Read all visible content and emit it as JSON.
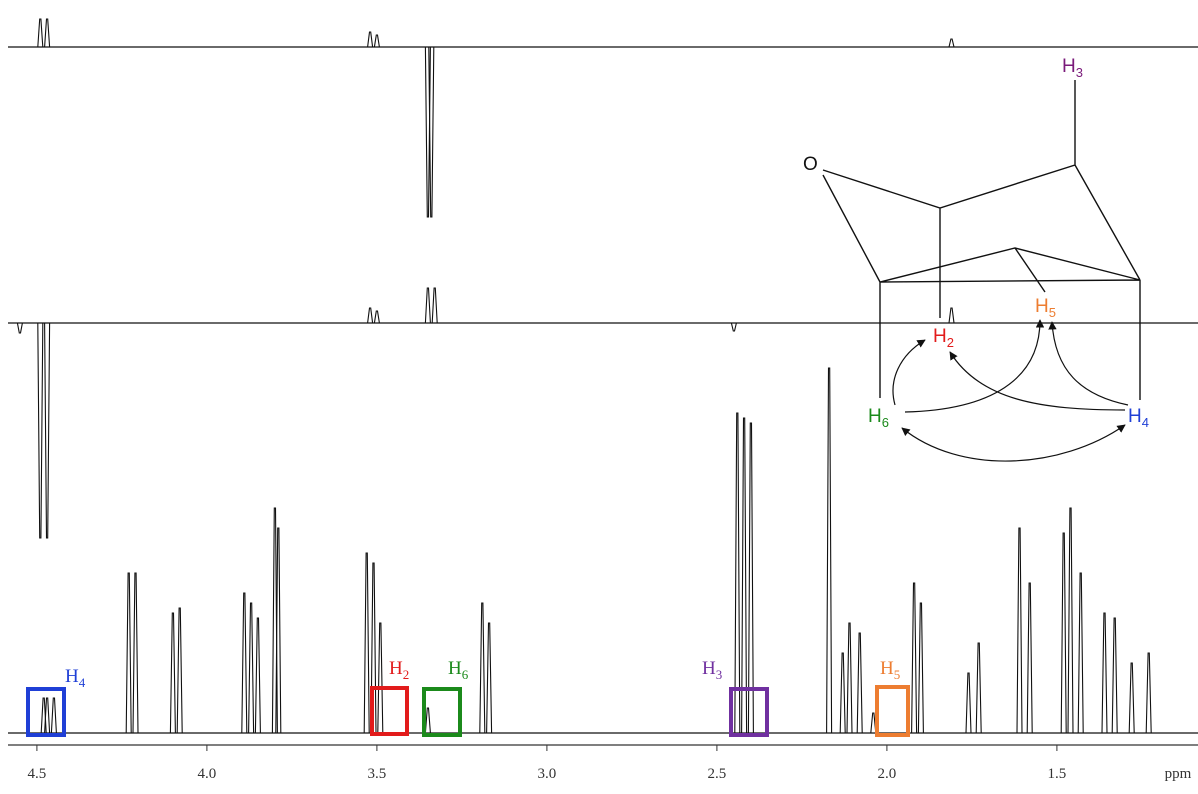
{
  "chart_data": {
    "type": "spectrum",
    "x_label": "ppm",
    "xlim": [
      4.585,
      1.085
    ],
    "xticks": [
      4.5,
      {
        "value": 4.0,
        "label": "4.0"
      },
      3.5,
      {
        "value": 3.0,
        "label": "3.0"
      },
      2.5,
      {
        "value": 2.0,
        "label": "2.0"
      },
      1.5
    ],
    "series": [
      {
        "color": "#111111",
        "x": [
          4.49,
          4.47,
          3.52,
          3.5,
          3.35,
          3.34,
          1.81
        ],
        "values": [
          28,
          28,
          15,
          12,
          -170,
          -170,
          8
        ]
      },
      {
        "color": "#111111",
        "x": [
          4.55,
          4.49,
          4.47,
          3.52,
          3.5,
          3.35,
          3.33,
          2.45,
          1.81
        ],
        "values": [
          -10,
          -215,
          -215,
          15,
          12,
          35,
          35,
          -8,
          15
        ]
      },
      {
        "color": "#111111",
        "x": [
          4.48,
          4.47,
          4.45,
          4.23,
          4.21,
          4.1,
          4.08,
          3.89,
          3.87,
          3.85,
          3.8,
          3.79,
          3.53,
          3.51,
          3.49,
          3.35,
          3.19,
          3.17,
          2.44,
          2.42,
          2.4,
          2.17,
          2.13,
          2.11,
          2.08,
          2.04,
          1.92,
          1.9,
          1.76,
          1.73,
          1.61,
          1.58,
          1.48,
          1.46,
          1.43,
          1.36,
          1.33,
          1.28,
          1.23
        ],
        "values": [
          35,
          35,
          35,
          160,
          160,
          120,
          125,
          140,
          130,
          115,
          225,
          205,
          180,
          170,
          110,
          25,
          130,
          110,
          320,
          315,
          310,
          365,
          80,
          110,
          100,
          20,
          150,
          130,
          60,
          90,
          205,
          150,
          200,
          225,
          160,
          120,
          115,
          70,
          80
        ]
      }
    ],
    "annotations": [
      {
        "label": "H",
        "sub": "4"
      },
      {
        "label": "H",
        "sub": "2"
      },
      {
        "label": "H",
        "sub": "6"
      },
      {
        "label": "H",
        "sub": "3"
      },
      {
        "label": "H",
        "sub": "5"
      }
    ]
  },
  "structure": {
    "labels": [
      {
        "text": "O"
      },
      {
        "text": "H",
        "sub": "3"
      },
      {
        "text": "H",
        "sub": "2"
      },
      {
        "text": "H",
        "sub": "5"
      },
      {
        "text": "H",
        "sub": "6"
      },
      {
        "text": "H",
        "sub": "4"
      }
    ]
  }
}
